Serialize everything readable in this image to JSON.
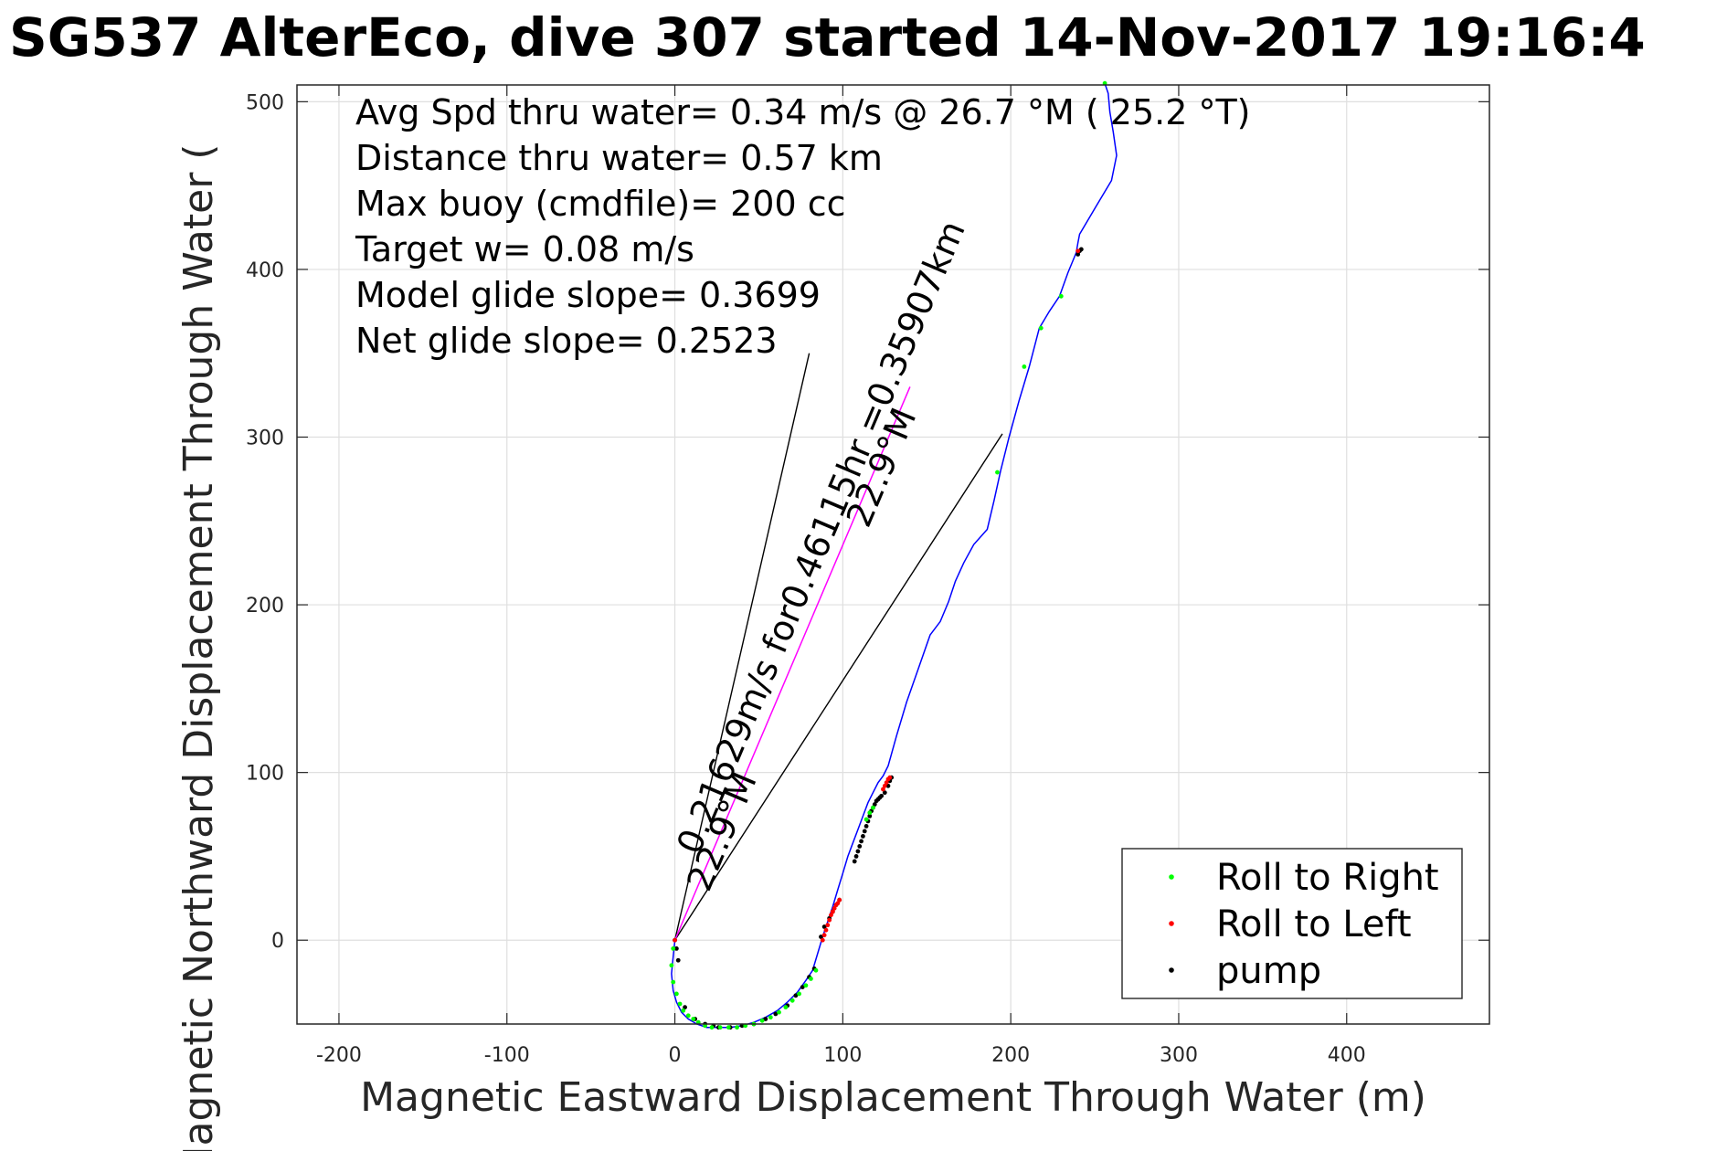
{
  "chart_data": {
    "type": "line",
    "title": "SG537 AlterEco, dive 307 started 14-Nov-2017 19:16:4",
    "xlabel": "Magnetic Eastward Displacement Through Water (m)",
    "ylabel": "Magnetic Northward Displacement Through Water (",
    "xlim": [
      -225,
      485
    ],
    "ylim": [
      -50,
      510
    ],
    "xticks": [
      -200,
      -100,
      0,
      100,
      200,
      300,
      400
    ],
    "xtick_labels": [
      "-200",
      "-100",
      "0",
      "100",
      "200",
      "300",
      "400"
    ],
    "yticks": [
      0,
      100,
      200,
      300,
      400,
      500
    ],
    "ytick_labels": [
      "0",
      "100",
      "200",
      "300",
      "400",
      "500"
    ],
    "grid": true,
    "legend_position": "bottom-right",
    "stats": [
      "Avg Spd thru water=  0.34 m/s @  26.7 °M ( 25.2 °T)",
      "Distance thru water=  0.57 km",
      "Max buoy (cmdfile)= 200 cc",
      "Target w= 0.08 m/s",
      "Model glide slope= 0.3699",
      "Net glide slope= 0.2523"
    ],
    "rotated_labels": [
      {
        "text": "0.21629m/s for0.46115hr =0.35907km",
        "x": 14,
        "y": 50,
        "angle_deg": -67
      },
      {
        "text": "22.9°M",
        "x": 20,
        "y": 28,
        "angle_deg": -67
      },
      {
        "text": "22.9°M",
        "x": 115,
        "y": 245,
        "angle_deg": -67
      }
    ],
    "series": [
      {
        "name": "track",
        "color": "#0000ff",
        "x": [
          0,
          -1,
          -2,
          -1,
          1,
          4,
          8,
          13,
          19,
          26,
          33,
          40,
          47,
          54,
          61,
          67,
          73,
          78,
          82,
          85,
          88,
          91,
          94,
          97,
          100,
          103,
          106,
          109,
          112,
          115,
          118,
          121,
          124,
          127,
          132,
          138,
          145,
          152,
          158,
          163,
          167,
          172,
          178,
          186,
          190,
          194,
          199,
          205,
          211,
          217,
          223,
          229,
          234,
          239,
          240,
          241,
          251,
          260,
          263,
          261,
          259,
          258,
          256
        ],
        "y": [
          0,
          -10,
          -20,
          -30,
          -37,
          -43,
          -47,
          -50,
          -52,
          -52,
          -52,
          -51,
          -49,
          -46,
          -42,
          -37,
          -31,
          -24,
          -18,
          -8,
          2,
          11,
          20,
          30,
          40,
          50,
          58,
          66,
          74,
          82,
          88,
          94,
          98,
          104,
          122,
          142,
          162,
          182,
          190,
          202,
          214,
          225,
          236,
          245,
          262,
          280,
          300,
          322,
          342,
          365,
          375,
          384,
          398,
          410,
          416,
          421,
          438,
          453,
          468,
          482,
          494,
          505,
          511
        ]
      },
      {
        "name": "pump",
        "color": "#000000",
        "x": [
          0,
          1,
          2,
          6,
          12,
          18,
          23,
          26,
          33,
          40,
          47,
          54,
          60,
          67,
          72,
          76,
          80,
          83,
          87,
          89,
          92,
          94,
          96,
          98,
          107,
          108,
          109,
          110,
          111,
          112,
          113,
          114,
          115,
          116,
          117,
          118,
          119,
          120,
          121,
          122,
          123,
          125,
          127,
          128,
          129,
          240,
          241,
          242
        ],
        "y": [
          0,
          -5,
          -12,
          -40,
          -47,
          -50,
          -51,
          -52,
          -52,
          -51,
          -50,
          -47,
          -44,
          -39,
          -33,
          -28,
          -22,
          -17,
          2,
          8,
          13,
          17,
          21,
          24,
          47,
          50,
          53,
          56,
          59,
          62,
          65,
          68,
          71,
          74,
          77,
          79,
          81,
          83,
          84,
          85,
          86,
          88,
          92,
          95,
          97,
          409,
          411,
          412
        ]
      },
      {
        "name": "Roll to Right",
        "color": "#00ff00",
        "x": [
          -1,
          -2,
          -1,
          1,
          3,
          5,
          8,
          11,
          14,
          18,
          22,
          27,
          32,
          37,
          42,
          47,
          52,
          57,
          62,
          66,
          70,
          74,
          78,
          81,
          84,
          114,
          116,
          118,
          192,
          208,
          218,
          230,
          256
        ],
        "y": [
          -5,
          -15,
          -25,
          -32,
          -38,
          -42,
          -45,
          -47,
          -49,
          -51,
          -52,
          -52,
          -52,
          -52,
          -51,
          -50,
          -48,
          -46,
          -43,
          -40,
          -36,
          -32,
          -27,
          -23,
          -18,
          72,
          76,
          79,
          279,
          342,
          365,
          384,
          511
        ]
      },
      {
        "name": "Roll to Left",
        "color": "#ff0000",
        "x": [
          0,
          88,
          89,
          90,
          91,
          92,
          93,
          94,
          95,
          96,
          97,
          98,
          124,
          125,
          126,
          127,
          128,
          240
        ],
        "y": [
          0,
          0,
          3,
          6,
          9,
          12,
          15,
          17,
          19,
          21,
          22,
          24,
          90,
          92,
          94,
          96,
          97,
          411
        ]
      },
      {
        "name": "heading line",
        "color": "#ff00ff",
        "x": [
          0,
          140
        ],
        "y": [
          0,
          330
        ]
      }
    ],
    "reference_lines": [
      {
        "x": [
          0,
          80
        ],
        "y": [
          0,
          350
        ]
      },
      {
        "x": [
          0,
          195
        ],
        "y": [
          0,
          302
        ]
      }
    ],
    "legend": [
      {
        "label": "Roll to Right",
        "color": "#00ff00"
      },
      {
        "label": "Roll to Left",
        "color": "#ff0000"
      },
      {
        "label": "pump",
        "color": "#000000"
      }
    ]
  }
}
